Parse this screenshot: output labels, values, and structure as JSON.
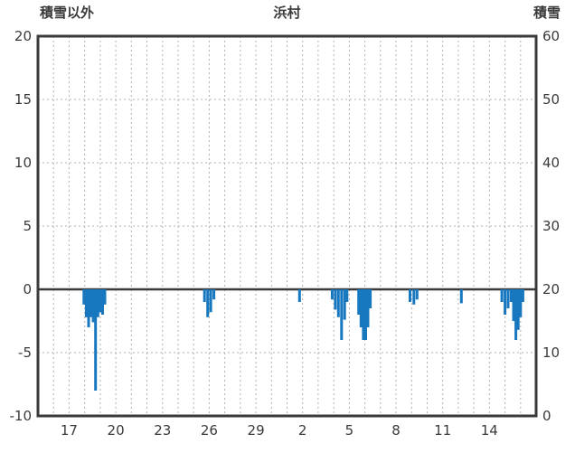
{
  "header": {
    "left_axis_label": "積雪以外",
    "title": "浜村",
    "right_axis_label": "積雪"
  },
  "chart_data": {
    "type": "bar",
    "title": "浜村",
    "left_axis": {
      "label": "積雪以外",
      "ticks": [
        20,
        15,
        10,
        5,
        0,
        -5,
        -10
      ],
      "range": [
        -10,
        20
      ]
    },
    "right_axis": {
      "label": "積雪",
      "ticks": [
        60,
        50,
        40,
        30,
        20,
        10,
        0
      ],
      "range": [
        0,
        60
      ]
    },
    "x_axis": {
      "tick_labels": [
        "17",
        "20",
        "23",
        "26",
        "29",
        "2",
        "5",
        "8",
        "11",
        "14"
      ],
      "tick_positions": [
        2,
        5,
        8,
        11,
        14,
        17,
        20,
        23,
        26,
        29
      ],
      "range": [
        0,
        32
      ],
      "days_per_gridline": 1
    },
    "bars": [
      [
        2.95,
        -1.2
      ],
      [
        3.1,
        -2.2
      ],
      [
        3.25,
        -3.0
      ],
      [
        3.4,
        -2.2
      ],
      [
        3.55,
        -2.6
      ],
      [
        3.7,
        -8.0
      ],
      [
        3.85,
        -2.2
      ],
      [
        4.0,
        -1.8
      ],
      [
        4.15,
        -2.0
      ],
      [
        4.3,
        -1.2
      ],
      [
        10.7,
        -1.0
      ],
      [
        10.9,
        -2.2
      ],
      [
        11.1,
        -1.8
      ],
      [
        11.3,
        -0.8
      ],
      [
        16.8,
        -1.0
      ],
      [
        18.9,
        -0.8
      ],
      [
        19.1,
        -1.6
      ],
      [
        19.3,
        -2.2
      ],
      [
        19.5,
        -4.0
      ],
      [
        19.7,
        -2.4
      ],
      [
        19.85,
        -1.0
      ],
      [
        20.6,
        -2.0
      ],
      [
        20.75,
        -3.0
      ],
      [
        20.9,
        -4.0
      ],
      [
        21.05,
        -4.0
      ],
      [
        21.2,
        -3.0
      ],
      [
        21.35,
        -1.5
      ],
      [
        23.9,
        -1.0
      ],
      [
        24.15,
        -1.2
      ],
      [
        24.35,
        -0.8
      ],
      [
        27.2,
        -1.1
      ],
      [
        29.8,
        -1.0
      ],
      [
        30.0,
        -2.0
      ],
      [
        30.2,
        -1.5
      ],
      [
        30.4,
        -1.0
      ],
      [
        30.55,
        -2.5
      ],
      [
        30.7,
        -4.0
      ],
      [
        30.85,
        -3.2
      ],
      [
        31.0,
        -2.2
      ],
      [
        31.15,
        -1.0
      ]
    ],
    "bar_color": "#1878bf",
    "grid_color": "#b0b0b0",
    "frame_color": "#3a3a3a",
    "zero_line_color": "#3a3a3a",
    "tick_text_color": "#3a3a3a",
    "legend_position": "none",
    "grid": true
  }
}
